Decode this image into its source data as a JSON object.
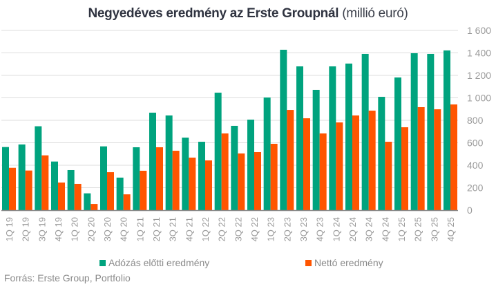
{
  "chart_data": {
    "type": "bar",
    "title_bold": "Negyedéves eredmény az Erste Groupnál",
    "title_light": "(millió euró)",
    "xlabel": "",
    "ylabel": "",
    "ylim": [
      0,
      1600
    ],
    "yticks": [
      0,
      200,
      400,
      600,
      800,
      1000,
      1200,
      1400,
      1600
    ],
    "ytick_labels": [
      "0",
      "200",
      "400",
      "600",
      "800",
      "1 000",
      "1 200",
      "1 400",
      "1 600"
    ],
    "y_axis_position": "right",
    "grid": true,
    "legend_position": "bottom",
    "categories": [
      "1Q 19",
      "2Q 19",
      "3Q 19",
      "4Q 19",
      "1Q 20",
      "2Q 20",
      "3Q 20",
      "4Q 20",
      "1Q 21",
      "2Q 21",
      "3Q 21",
      "4Q 21",
      "1Q 22",
      "2Q 22",
      "3Q 22",
      "4Q 22",
      "1Q 23",
      "2Q 23",
      "3Q 23",
      "4Q 23",
      "1Q 24",
      "2Q 24",
      "3Q 24",
      "4Q 24",
      "1Q 25",
      "2Q 25",
      "3Q 25",
      "4Q 25"
    ],
    "series": [
      {
        "name": "Adózás előtti eredmény",
        "color": "#00A37E",
        "values": [
          562,
          585,
          747,
          433,
          357,
          150,
          568,
          290,
          560,
          868,
          843,
          646,
          609,
          1046,
          751,
          806,
          1003,
          1428,
          1280,
          1071,
          1280,
          1305,
          1391,
          1009,
          1181,
          1397,
          1391,
          1422
        ]
      },
      {
        "name": "Nettó eredmény",
        "color": "#FF5500",
        "values": [
          377,
          353,
          488,
          246,
          234,
          55,
          338,
          141,
          351,
          560,
          529,
          468,
          443,
          683,
          505,
          517,
          591,
          892,
          818,
          683,
          781,
          843,
          886,
          609,
          738,
          917,
          898,
          941
        ]
      }
    ],
    "source": "Forrás: Erste Group, Portfolio"
  }
}
